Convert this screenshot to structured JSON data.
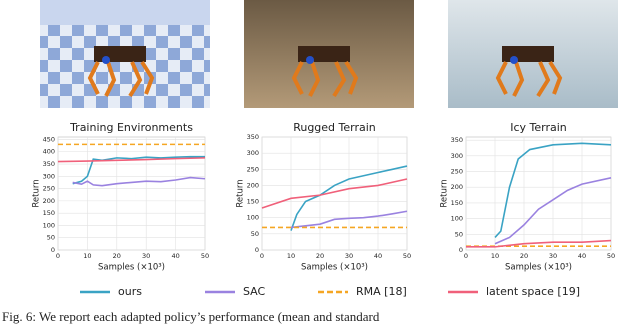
{
  "chart_data": [
    {
      "type": "line",
      "title": "Training Environments",
      "x_label": "Samples (×10³)",
      "y_label": "Return",
      "xlim": [
        0,
        50
      ],
      "xticks": [
        0,
        10,
        20,
        30,
        40,
        50
      ],
      "ylim": [
        0,
        460
      ],
      "yticks": [
        0,
        50,
        100,
        150,
        200,
        250,
        300,
        350,
        400,
        450
      ],
      "grid": true,
      "series": [
        {
          "name": "ours",
          "color": "#3aa3c4",
          "dash": false,
          "x": [
            5,
            8,
            10,
            12,
            15,
            20,
            25,
            30,
            35,
            40,
            45,
            50
          ],
          "values": [
            270,
            280,
            300,
            370,
            365,
            375,
            372,
            378,
            375,
            378,
            380,
            380
          ]
        },
        {
          "name": "SAC",
          "color": "#9a82e0",
          "dash": false,
          "x": [
            5,
            8,
            10,
            12,
            15,
            20,
            25,
            30,
            35,
            40,
            45,
            50
          ],
          "values": [
            275,
            268,
            280,
            265,
            262,
            270,
            275,
            280,
            278,
            285,
            295,
            290
          ]
        },
        {
          "name": "RMA [18]",
          "color": "#f5a623",
          "dash": true,
          "x": [
            0,
            50
          ],
          "values": [
            430,
            430
          ]
        },
        {
          "name": "latent space [19]",
          "color": "#f0607a",
          "dash": false,
          "x": [
            0,
            10,
            20,
            30,
            40,
            50
          ],
          "values": [
            360,
            362,
            365,
            368,
            372,
            375
          ]
        }
      ]
    },
    {
      "type": "line",
      "title": "Rugged Terrain",
      "x_label": "Samples (×10³)",
      "y_label": "Return",
      "xlim": [
        0,
        50
      ],
      "xticks": [
        0,
        10,
        20,
        30,
        40,
        50
      ],
      "ylim": [
        0,
        350
      ],
      "yticks": [
        0,
        50,
        100,
        150,
        200,
        250,
        300,
        350
      ],
      "grid": true,
      "series": [
        {
          "name": "ours",
          "color": "#3aa3c4",
          "dash": false,
          "x": [
            10,
            12,
            15,
            20,
            25,
            30,
            35,
            40,
            45,
            50
          ],
          "values": [
            60,
            110,
            150,
            170,
            200,
            220,
            230,
            240,
            250,
            260
          ]
        },
        {
          "name": "SAC",
          "color": "#9a82e0",
          "dash": false,
          "x": [
            10,
            15,
            20,
            25,
            30,
            35,
            40,
            45,
            50
          ],
          "values": [
            70,
            75,
            80,
            95,
            98,
            100,
            105,
            112,
            120
          ]
        },
        {
          "name": "RMA [18]",
          "color": "#f5a623",
          "dash": true,
          "x": [
            0,
            50
          ],
          "values": [
            70,
            70
          ]
        },
        {
          "name": "latent space [19]",
          "color": "#f0607a",
          "dash": false,
          "x": [
            0,
            10,
            20,
            30,
            40,
            50
          ],
          "values": [
            130,
            160,
            170,
            190,
            200,
            220
          ]
        }
      ]
    },
    {
      "type": "line",
      "title": "Icy Terrain",
      "x_label": "Samples (×10³)",
      "y_label": "Return",
      "xlim": [
        0,
        50
      ],
      "xticks": [
        0,
        10,
        20,
        30,
        40,
        50
      ],
      "ylim": [
        0,
        360
      ],
      "yticks": [
        0,
        50,
        100,
        150,
        200,
        250,
        300,
        350
      ],
      "grid": true,
      "series": [
        {
          "name": "ours",
          "color": "#3aa3c4",
          "dash": false,
          "x": [
            10,
            12,
            15,
            18,
            22,
            30,
            40,
            50
          ],
          "values": [
            40,
            60,
            200,
            290,
            320,
            335,
            340,
            335
          ]
        },
        {
          "name": "SAC",
          "color": "#9a82e0",
          "dash": false,
          "x": [
            10,
            15,
            20,
            25,
            30,
            35,
            40,
            50
          ],
          "values": [
            20,
            40,
            80,
            130,
            160,
            190,
            210,
            230
          ]
        },
        {
          "name": "RMA [18]",
          "color": "#f5a623",
          "dash": true,
          "x": [
            0,
            50
          ],
          "values": [
            12,
            12
          ]
        },
        {
          "name": "latent space [19]",
          "color": "#f0607a",
          "dash": false,
          "x": [
            0,
            10,
            20,
            30,
            40,
            50
          ],
          "values": [
            10,
            10,
            20,
            25,
            25,
            30
          ]
        }
      ]
    }
  ],
  "caption": "Fig. 6: We report each adapted policy’s performance (mean and standard"
}
